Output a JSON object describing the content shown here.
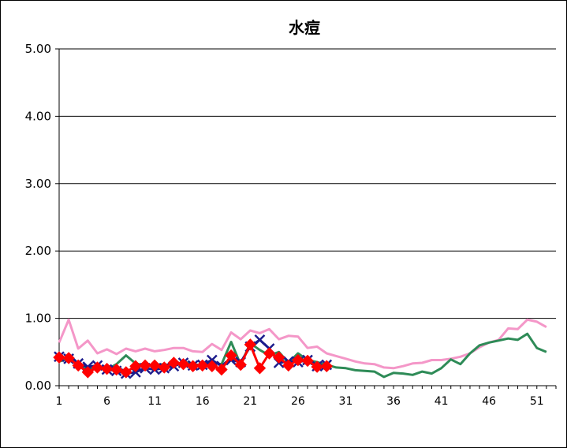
{
  "chart_data": {
    "type": "line",
    "title": "水痘",
    "xlabel": "",
    "ylabel": "",
    "ylim": [
      0,
      5
    ],
    "xlim": [
      1,
      53
    ],
    "y_ticks": [
      "0.00",
      "1.00",
      "2.00",
      "3.00",
      "4.00",
      "5.00"
    ],
    "x_ticks": [
      "1",
      "6",
      "11",
      "16",
      "21",
      "26",
      "31",
      "36",
      "41",
      "46",
      "51"
    ],
    "grid": true,
    "legend": "none",
    "series": [
      {
        "color": "#f497c8",
        "marker": "none",
        "x": [
          1,
          2,
          3,
          4,
          5,
          6,
          7,
          8,
          9,
          10,
          11,
          12,
          13,
          14,
          15,
          16,
          17,
          18,
          19,
          20,
          21,
          22,
          23,
          24,
          25,
          26,
          27,
          28,
          29,
          30,
          31,
          32,
          33,
          34,
          35,
          36,
          37,
          38,
          39,
          40,
          41,
          42,
          43,
          44,
          45,
          46,
          47,
          48,
          49,
          50,
          51,
          52
        ],
        "values": [
          0.64,
          0.98,
          0.55,
          0.67,
          0.48,
          0.54,
          0.47,
          0.55,
          0.51,
          0.55,
          0.51,
          0.53,
          0.56,
          0.56,
          0.51,
          0.5,
          0.62,
          0.53,
          0.79,
          0.69,
          0.82,
          0.78,
          0.84,
          0.69,
          0.74,
          0.73,
          0.56,
          0.58,
          0.48,
          0.44,
          0.4,
          0.36,
          0.33,
          0.32,
          0.27,
          0.26,
          0.29,
          0.33,
          0.34,
          0.38,
          0.38,
          0.4,
          0.43,
          0.48,
          0.57,
          0.64,
          0.68,
          0.85,
          0.84,
          0.98,
          0.95,
          0.87
        ]
      },
      {
        "color": "#2e8b57",
        "marker": "none",
        "x": [
          1,
          2,
          3,
          4,
          5,
          6,
          7,
          8,
          9,
          10,
          11,
          12,
          13,
          14,
          15,
          16,
          17,
          18,
          19,
          20,
          21,
          22,
          23,
          24,
          25,
          26,
          27,
          28,
          29,
          30,
          31,
          32,
          33,
          34,
          35,
          36,
          37,
          38,
          39,
          40,
          41,
          42,
          43,
          44,
          45,
          46,
          47,
          48,
          49,
          50,
          51,
          52
        ],
        "values": [
          0.36,
          0.4,
          0.31,
          0.25,
          0.28,
          0.24,
          0.32,
          0.45,
          0.33,
          0.3,
          0.31,
          0.32,
          0.29,
          0.36,
          0.32,
          0.3,
          0.34,
          0.32,
          0.65,
          0.31,
          0.63,
          0.53,
          0.45,
          0.5,
          0.34,
          0.48,
          0.38,
          0.35,
          0.31,
          0.27,
          0.26,
          0.23,
          0.22,
          0.21,
          0.13,
          0.19,
          0.18,
          0.16,
          0.21,
          0.18,
          0.26,
          0.39,
          0.32,
          0.48,
          0.6,
          0.64,
          0.67,
          0.7,
          0.68,
          0.77,
          0.56,
          0.5
        ]
      },
      {
        "color": "#1c1c8c",
        "marker": "x",
        "x": [
          1,
          2,
          3,
          4,
          5,
          6,
          7,
          8,
          9,
          10,
          11,
          12,
          13,
          14,
          15,
          16,
          17,
          18,
          19,
          20,
          21,
          22,
          23,
          24,
          25,
          26,
          27,
          28,
          29
        ],
        "values": [
          0.43,
          0.4,
          0.33,
          0.28,
          0.3,
          0.24,
          0.22,
          0.18,
          0.2,
          0.26,
          0.24,
          0.26,
          0.29,
          0.34,
          0.3,
          0.31,
          0.38,
          0.29,
          0.38,
          0.35,
          0.58,
          0.68,
          0.55,
          0.34,
          0.36,
          0.35,
          0.38,
          0.29,
          0.31
        ]
      },
      {
        "color": "#ff0000",
        "marker": "diamond",
        "x": [
          1,
          2,
          3,
          4,
          5,
          6,
          7,
          8,
          9,
          10,
          11,
          12,
          13,
          14,
          15,
          16,
          17,
          18,
          19,
          20,
          21,
          22,
          23,
          24,
          25,
          26,
          27,
          28,
          29
        ],
        "values": [
          0.42,
          0.41,
          0.3,
          0.2,
          0.27,
          0.25,
          0.24,
          0.2,
          0.29,
          0.3,
          0.3,
          0.27,
          0.34,
          0.32,
          0.29,
          0.3,
          0.29,
          0.24,
          0.45,
          0.31,
          0.61,
          0.26,
          0.48,
          0.42,
          0.3,
          0.38,
          0.37,
          0.28,
          0.29
        ]
      }
    ]
  }
}
